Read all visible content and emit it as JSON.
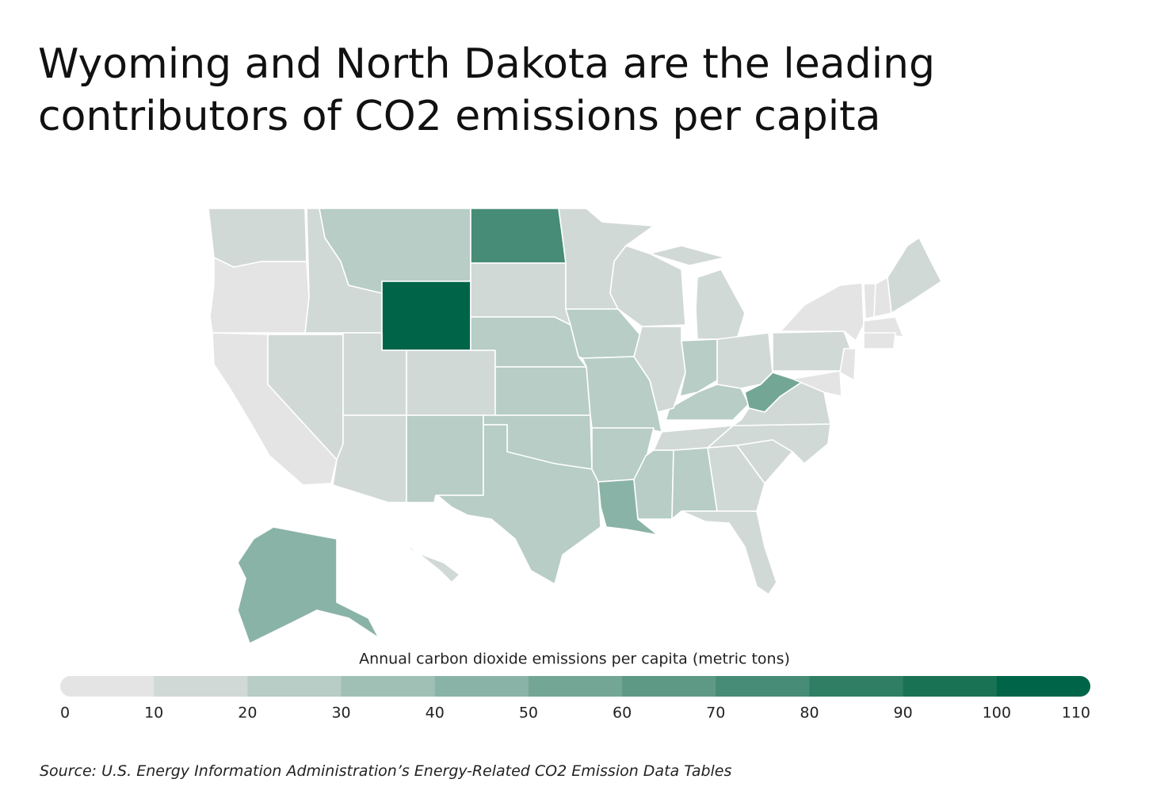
{
  "map": {
    "title": "Wyoming and North Dakota are the leading contributors of CO2 emissions per capita",
    "values": [
      14,
      8,
      9,
      13,
      17,
      27,
      105,
      18,
      14,
      13,
      24,
      78,
      17,
      23,
      25,
      23,
      26,
      13,
      27,
      21,
      22,
      43,
      20,
      24,
      15,
      11,
      14,
      11,
      14,
      26,
      15,
      15,
      27,
      14,
      14,
      17,
      52,
      13,
      16,
      8,
      9,
      9,
      9,
      8,
      12,
      8,
      9,
      42,
      12
    ],
    "legend": {
      "title": "Annual carbon dioxide emissions per capita (metric tons)",
      "ticks": [
        0,
        10,
        20,
        30,
        40,
        50,
        60,
        70,
        80,
        90,
        100,
        110
      ],
      "colors": [
        "#e4e4e4",
        "#d1d9d7",
        "#b7cdc6",
        "#a0c0b6",
        "#8ab3a7",
        "#74a696",
        "#5e9986",
        "#478c76",
        "#307f65",
        "#1a7255",
        "#006548"
      ]
    },
    "source": "Source:  U.S. Energy Information Administration’s Energy-Related CO2 Emission Data Tables"
  }
}
